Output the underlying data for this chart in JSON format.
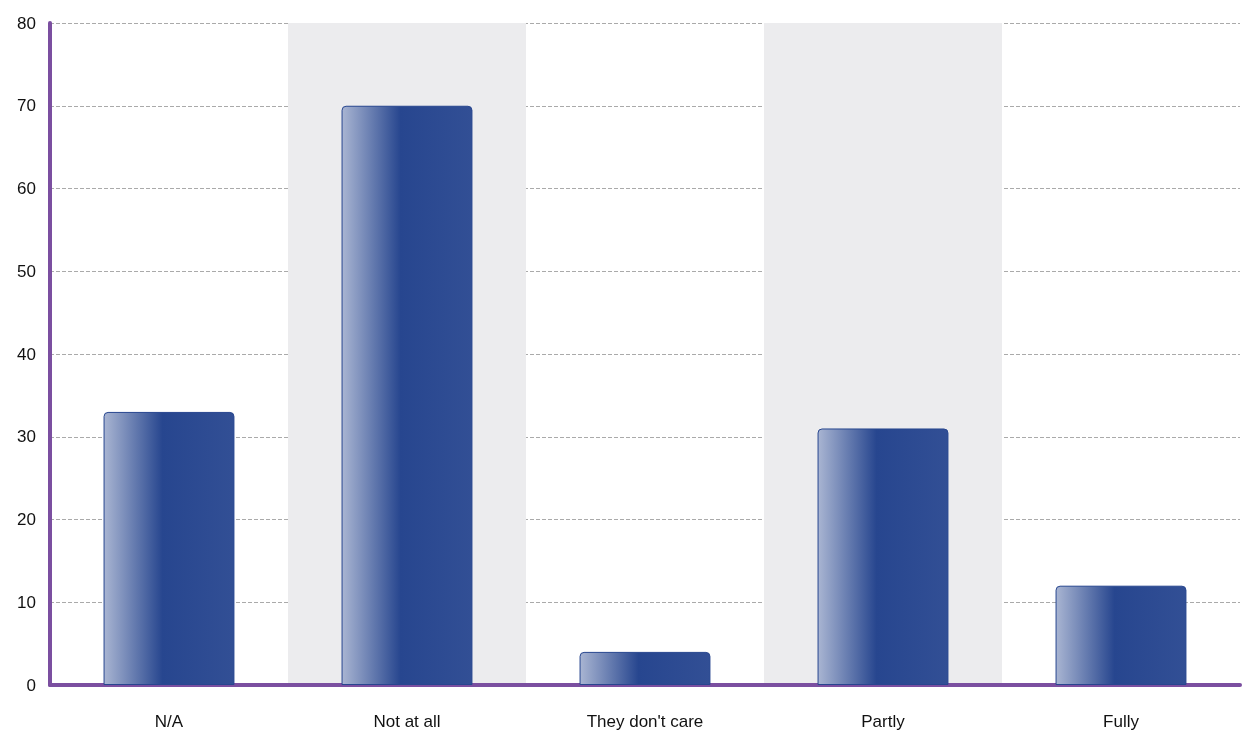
{
  "chart_data": {
    "type": "bar",
    "categories": [
      "N/A",
      "Not at all",
      "They don't care",
      "Partly",
      "Fully"
    ],
    "values": [
      33,
      70,
      4,
      31,
      12
    ],
    "color": "#27468f",
    "ylim": [
      0,
      80
    ],
    "yticks": [
      0,
      10,
      20,
      30,
      40,
      50,
      60,
      70,
      80
    ],
    "grid": "y",
    "line_style": "dashed",
    "bands": [
      {
        "axis": "x",
        "from": "Not at all",
        "to": "Not at all",
        "color": "#ececee"
      },
      {
        "axis": "x",
        "from": "Partly",
        "to": "Partly",
        "color": "#ececee"
      }
    ]
  }
}
